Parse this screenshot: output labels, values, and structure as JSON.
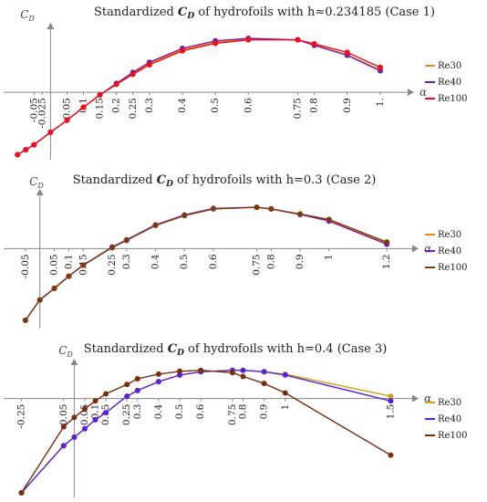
{
  "chart_data": [
    {
      "type": "line",
      "title": "Standardized C_D of hydrofoils with h≈0.234185 (Case 1)",
      "title_parts": {
        "pre": "Standardized ",
        "sym": "C",
        "sub": "D",
        "post": " of hydrofoils with h≈0.234185 (Case 1)"
      },
      "ylabel": "C_D",
      "ylabel_parts": {
        "sym": "C",
        "sub": "D"
      },
      "xlabel": "α",
      "x_ticks": [
        -0.05,
        -0.025,
        0.05,
        0.1,
        0.15,
        0.2,
        0.25,
        0.3,
        0.4,
        0.5,
        0.6,
        0.75,
        0.8,
        0.9,
        1
      ],
      "x_tick_labels": [
        "-0.05",
        "-0.025",
        "0.05",
        "0.1",
        "0.15",
        "0.2",
        "0.25",
        "0.3",
        "0.4",
        "0.5",
        "0.6",
        "0.75",
        "0.8",
        "0.9",
        "1."
      ],
      "x": [
        -0.1,
        -0.075,
        -0.05,
        0,
        0.05,
        0.1,
        0.15,
        0.2,
        0.25,
        0.3,
        0.4,
        0.5,
        0.6,
        0.75,
        0.8,
        0.9,
        1
      ],
      "series": [
        {
          "name": "Re30",
          "color": "#f5871f",
          "values": [
            -1.25,
            -1.15,
            -1.05,
            -0.8,
            -0.56,
            -0.3,
            -0.05,
            0.17,
            0.38,
            0.58,
            0.85,
            1.0,
            1.07,
            1.05,
            0.95,
            0.75,
            0.45
          ]
        },
        {
          "name": "Re40",
          "color": "#7b1fa2",
          "values": [
            -1.25,
            -1.15,
            -1.05,
            -0.8,
            -0.56,
            -0.3,
            -0.05,
            0.18,
            0.4,
            0.6,
            0.88,
            1.03,
            1.08,
            1.05,
            0.94,
            0.74,
            0.43
          ]
        },
        {
          "name": "Re100",
          "color": "#e8121e",
          "values": [
            -1.25,
            -1.15,
            -1.05,
            -0.8,
            -0.56,
            -0.3,
            -0.05,
            0.16,
            0.36,
            0.55,
            0.83,
            0.98,
            1.05,
            1.05,
            0.97,
            0.8,
            0.5
          ]
        }
      ],
      "xlim": [
        -0.12,
        1.05
      ],
      "ylim": [
        -1.35,
        1.3
      ],
      "legend": "right"
    },
    {
      "type": "line",
      "title": "Standardized C_D of hydrofoils with h=0.3 (Case 2)",
      "title_parts": {
        "pre": "Standardized ",
        "sym": "C",
        "sub": "D",
        "post": " of hydrofoils with h=0.3 (Case 2)"
      },
      "ylabel": "C_D",
      "ylabel_parts": {
        "sym": "C",
        "sub": "D"
      },
      "xlabel": "α",
      "x_ticks": [
        -0.05,
        0.05,
        0.1,
        0.15,
        0.25,
        0.3,
        0.4,
        0.5,
        0.6,
        0.75,
        0.8,
        0.9,
        1,
        1.2
      ],
      "x_tick_labels": [
        "-0.05",
        "0.05",
        "0.1",
        "0.15",
        "0.25",
        "0.3",
        "0.4",
        "0.5",
        "0.6",
        "0.75",
        "0.8",
        "0.9",
        "1",
        "1.2"
      ],
      "x": [
        -0.05,
        0,
        0.05,
        0.1,
        0.15,
        0.25,
        0.3,
        0.4,
        0.5,
        0.6,
        0.75,
        0.8,
        0.9,
        1,
        1.2
      ],
      "series": [
        {
          "name": "Re30",
          "color": "#f5871f",
          "values": [
            -1.3,
            -0.93,
            -0.72,
            -0.5,
            -0.3,
            0.02,
            0.15,
            0.42,
            0.6,
            0.72,
            0.75,
            0.72,
            0.62,
            0.52,
            0.1
          ]
        },
        {
          "name": "Re40",
          "color": "#7b1fa2",
          "values": [
            -1.3,
            -0.93,
            -0.72,
            -0.5,
            -0.3,
            0.03,
            0.16,
            0.43,
            0.61,
            0.73,
            0.75,
            0.72,
            0.62,
            0.5,
            0.08
          ]
        },
        {
          "name": "Re100",
          "color": "#7a3b12",
          "values": [
            -1.3,
            -0.93,
            -0.72,
            -0.5,
            -0.3,
            0.02,
            0.15,
            0.42,
            0.6,
            0.72,
            0.75,
            0.72,
            0.63,
            0.53,
            0.12
          ]
        }
      ],
      "xlim": [
        -0.1,
        1.25
      ],
      "ylim": [
        -1.45,
        1.0
      ],
      "legend": "right"
    },
    {
      "type": "line",
      "title": "Standardized C_D of hydrofoils with h=0.4 (Case 3)",
      "title_parts": {
        "pre": "Standardized ",
        "sym": "C",
        "sub": "D",
        "post": " of hydrofoils with h=0.4 (Case 3)"
      },
      "ylabel": "C_D",
      "ylabel_parts": {
        "sym": "C",
        "sub": "D"
      },
      "xlabel": "α",
      "x_ticks": [
        -0.25,
        -0.05,
        0.05,
        0.1,
        0.15,
        0.25,
        0.3,
        0.4,
        0.5,
        0.6,
        0.75,
        0.8,
        0.9,
        1,
        1.5
      ],
      "x_tick_labels": [
        "-0.25",
        "-0.05",
        "0.05",
        "0.1",
        "0.15",
        "0.25",
        "0.3",
        "0.4",
        "0.5",
        "0.6",
        "0.75",
        "0.8",
        "0.9",
        "1",
        "1.5"
      ],
      "x": [
        -0.25,
        -0.05,
        0,
        0.05,
        0.1,
        0.15,
        0.25,
        0.3,
        0.4,
        0.5,
        0.6,
        0.75,
        0.8,
        0.9,
        1,
        1.5
      ],
      "series": [
        {
          "name": "Re30",
          "color": "#d4a017",
          "values": [
            -2.0,
            -1.0,
            -0.82,
            -0.64,
            -0.45,
            -0.3,
            0.05,
            0.17,
            0.36,
            0.5,
            0.57,
            0.6,
            0.6,
            0.57,
            0.52,
            0.05
          ]
        },
        {
          "name": "Re40",
          "color": "#5b21d6",
          "values": [
            -2.0,
            -1.0,
            -0.82,
            -0.64,
            -0.45,
            -0.3,
            0.05,
            0.17,
            0.36,
            0.5,
            0.57,
            0.6,
            0.6,
            0.57,
            0.5,
            -0.05
          ]
        },
        {
          "name": "Re100",
          "color": "#7a2e0e",
          "values": [
            -2.0,
            -0.6,
            -0.4,
            -0.22,
            -0.05,
            0.1,
            0.3,
            0.42,
            0.52,
            0.58,
            0.6,
            0.55,
            0.47,
            0.32,
            0.12,
            -1.2
          ]
        }
      ],
      "xlim": [
        -0.3,
        1.55
      ],
      "ylim": [
        -2.1,
        0.75
      ],
      "legend": "right"
    }
  ]
}
